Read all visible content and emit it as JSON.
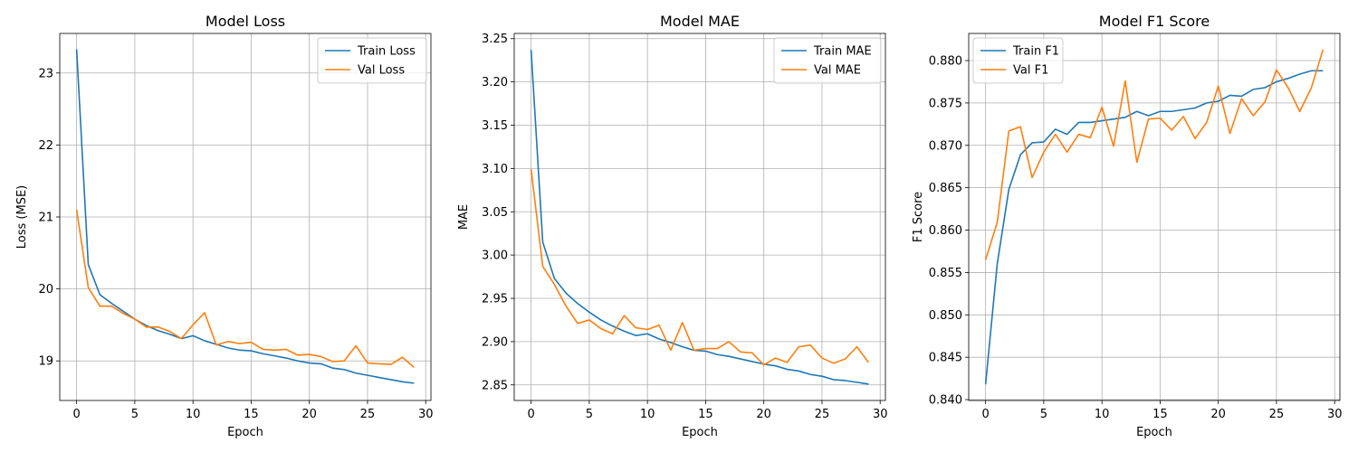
{
  "chart_data": [
    {
      "type": "line",
      "title": "Model Loss",
      "xlabel": "Epoch",
      "ylabel": "Loss (MSE)",
      "xlim": [
        -1.45,
        30.45
      ],
      "ylim": [
        18.45,
        23.55
      ],
      "xticks": [
        0,
        5,
        10,
        15,
        20,
        25,
        30
      ],
      "yticks": [
        19,
        20,
        21,
        22,
        23
      ],
      "ytick_labels": [
        "19",
        "20",
        "21",
        "22",
        "23"
      ],
      "grid": true,
      "legend_position": "top-right",
      "x": [
        0,
        1,
        2,
        3,
        4,
        5,
        6,
        7,
        8,
        9,
        10,
        11,
        12,
        13,
        14,
        15,
        16,
        17,
        18,
        19,
        20,
        21,
        22,
        23,
        24,
        25,
        26,
        27,
        28,
        29
      ],
      "series": [
        {
          "name": "Train Loss",
          "color": "#1f77b4",
          "values": [
            23.33,
            20.34,
            19.92,
            19.8,
            19.69,
            19.58,
            19.49,
            19.42,
            19.37,
            19.31,
            19.35,
            19.28,
            19.23,
            19.18,
            19.15,
            19.14,
            19.1,
            19.07,
            19.04,
            19.0,
            18.97,
            18.96,
            18.9,
            18.88,
            18.83,
            18.8,
            18.77,
            18.74,
            18.71,
            18.69
          ]
        },
        {
          "name": "Val Loss",
          "color": "#ff7f0e",
          "values": [
            21.1,
            20.02,
            19.76,
            19.76,
            19.66,
            19.58,
            19.47,
            19.47,
            19.41,
            19.31,
            19.5,
            19.67,
            19.22,
            19.27,
            19.24,
            19.26,
            19.16,
            19.15,
            19.16,
            19.08,
            19.09,
            19.06,
            18.99,
            19.0,
            19.21,
            18.97,
            18.96,
            18.95,
            19.05,
            18.91
          ]
        }
      ]
    },
    {
      "type": "line",
      "title": "Model MAE",
      "xlabel": "Epoch",
      "ylabel": "MAE",
      "xlim": [
        -1.45,
        30.45
      ],
      "ylim": [
        2.832,
        3.256
      ],
      "xticks": [
        0,
        5,
        10,
        15,
        20,
        25,
        30
      ],
      "yticks": [
        2.85,
        2.9,
        2.95,
        3.0,
        3.05,
        3.1,
        3.15,
        3.2,
        3.25
      ],
      "ytick_labels": [
        "2.85",
        "2.90",
        "2.95",
        "3.00",
        "3.05",
        "3.10",
        "3.15",
        "3.20",
        "3.25"
      ],
      "grid": true,
      "legend_position": "top-right",
      "x": [
        0,
        1,
        2,
        3,
        4,
        5,
        6,
        7,
        8,
        9,
        10,
        11,
        12,
        13,
        14,
        15,
        16,
        17,
        18,
        19,
        20,
        21,
        22,
        23,
        24,
        25,
        26,
        27,
        28,
        29
      ],
      "series": [
        {
          "name": "Train MAE",
          "color": "#1f77b4",
          "values": [
            3.237,
            3.015,
            2.973,
            2.956,
            2.944,
            2.934,
            2.925,
            2.918,
            2.912,
            2.907,
            2.909,
            2.903,
            2.899,
            2.894,
            2.89,
            2.889,
            2.885,
            2.883,
            2.88,
            2.877,
            2.874,
            2.872,
            2.868,
            2.866,
            2.862,
            2.86,
            2.856,
            2.855,
            2.853,
            2.851
          ]
        },
        {
          "name": "Val MAE",
          "color": "#ff7f0e",
          "values": [
            3.099,
            2.987,
            2.966,
            2.941,
            2.921,
            2.925,
            2.915,
            2.909,
            2.93,
            2.916,
            2.914,
            2.919,
            2.89,
            2.922,
            2.89,
            2.892,
            2.892,
            2.9,
            2.888,
            2.887,
            2.873,
            2.881,
            2.876,
            2.894,
            2.896,
            2.881,
            2.875,
            2.88,
            2.894,
            2.876
          ]
        }
      ]
    },
    {
      "type": "line",
      "title": "Model F1 Score",
      "xlabel": "Epoch",
      "ylabel": "F1 Score",
      "xlim": [
        -1.45,
        30.45
      ],
      "ylim": [
        0.8399,
        0.8832
      ],
      "xticks": [
        0,
        5,
        10,
        15,
        20,
        25,
        30
      ],
      "yticks": [
        0.84,
        0.845,
        0.85,
        0.855,
        0.86,
        0.865,
        0.87,
        0.875,
        0.88
      ],
      "ytick_labels": [
        "0.840",
        "0.845",
        "0.850",
        "0.855",
        "0.860",
        "0.865",
        "0.870",
        "0.875",
        "0.880"
      ],
      "grid": true,
      "legend_position": "top-left",
      "x": [
        0,
        1,
        2,
        3,
        4,
        5,
        6,
        7,
        8,
        9,
        10,
        11,
        12,
        13,
        14,
        15,
        16,
        17,
        18,
        19,
        20,
        21,
        22,
        23,
        24,
        25,
        26,
        27,
        28,
        29
      ],
      "series": [
        {
          "name": "Train F1",
          "color": "#1f77b4",
          "values": [
            0.8418,
            0.856,
            0.8648,
            0.8689,
            0.8703,
            0.8704,
            0.8719,
            0.8713,
            0.8727,
            0.8727,
            0.8729,
            0.8731,
            0.8733,
            0.874,
            0.8735,
            0.874,
            0.874,
            0.8742,
            0.8744,
            0.875,
            0.8752,
            0.8759,
            0.8758,
            0.8766,
            0.8768,
            0.8775,
            0.8779,
            0.8784,
            0.8788,
            0.8788
          ]
        },
        {
          "name": "Val F1",
          "color": "#ff7f0e",
          "values": [
            0.8565,
            0.8609,
            0.8717,
            0.8722,
            0.8662,
            0.8692,
            0.8713,
            0.8692,
            0.8713,
            0.8709,
            0.8745,
            0.8699,
            0.8776,
            0.868,
            0.8731,
            0.8732,
            0.8718,
            0.8734,
            0.8708,
            0.8727,
            0.877,
            0.8714,
            0.8755,
            0.8735,
            0.8751,
            0.8789,
            0.8768,
            0.874,
            0.8768,
            0.8813
          ]
        }
      ]
    }
  ]
}
